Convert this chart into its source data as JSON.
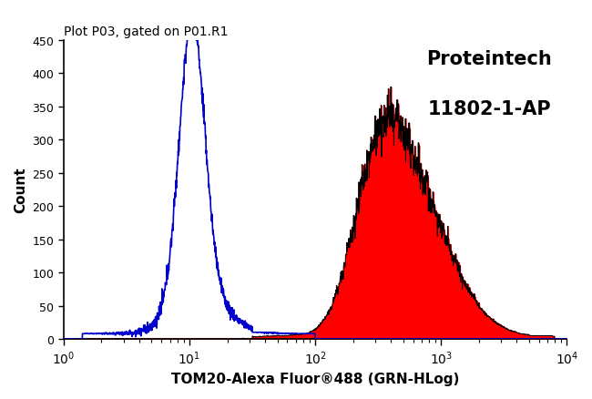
{
  "title": "Plot P03, gated on P01.R1",
  "xlabel": "TOM20-Alexa Fluor®488 (GRN-HLog)",
  "ylabel": "Count",
  "annotation_line1": "Proteintech",
  "annotation_line2": "11802-1-AP",
  "ylim": [
    0,
    450
  ],
  "yticks": [
    0,
    50,
    100,
    150,
    200,
    250,
    300,
    350,
    400,
    450
  ],
  "bg_color": "#ffffff",
  "blue_color": "#0000cc",
  "red_color": "#ff0000",
  "black_color": "#000000",
  "blue_peak_log": 1.02,
  "blue_peak_count": 420,
  "blue_sigma_log": 0.1,
  "red_peak_log": 2.68,
  "red_peak_count": 330,
  "red_sigma_log": 0.3
}
